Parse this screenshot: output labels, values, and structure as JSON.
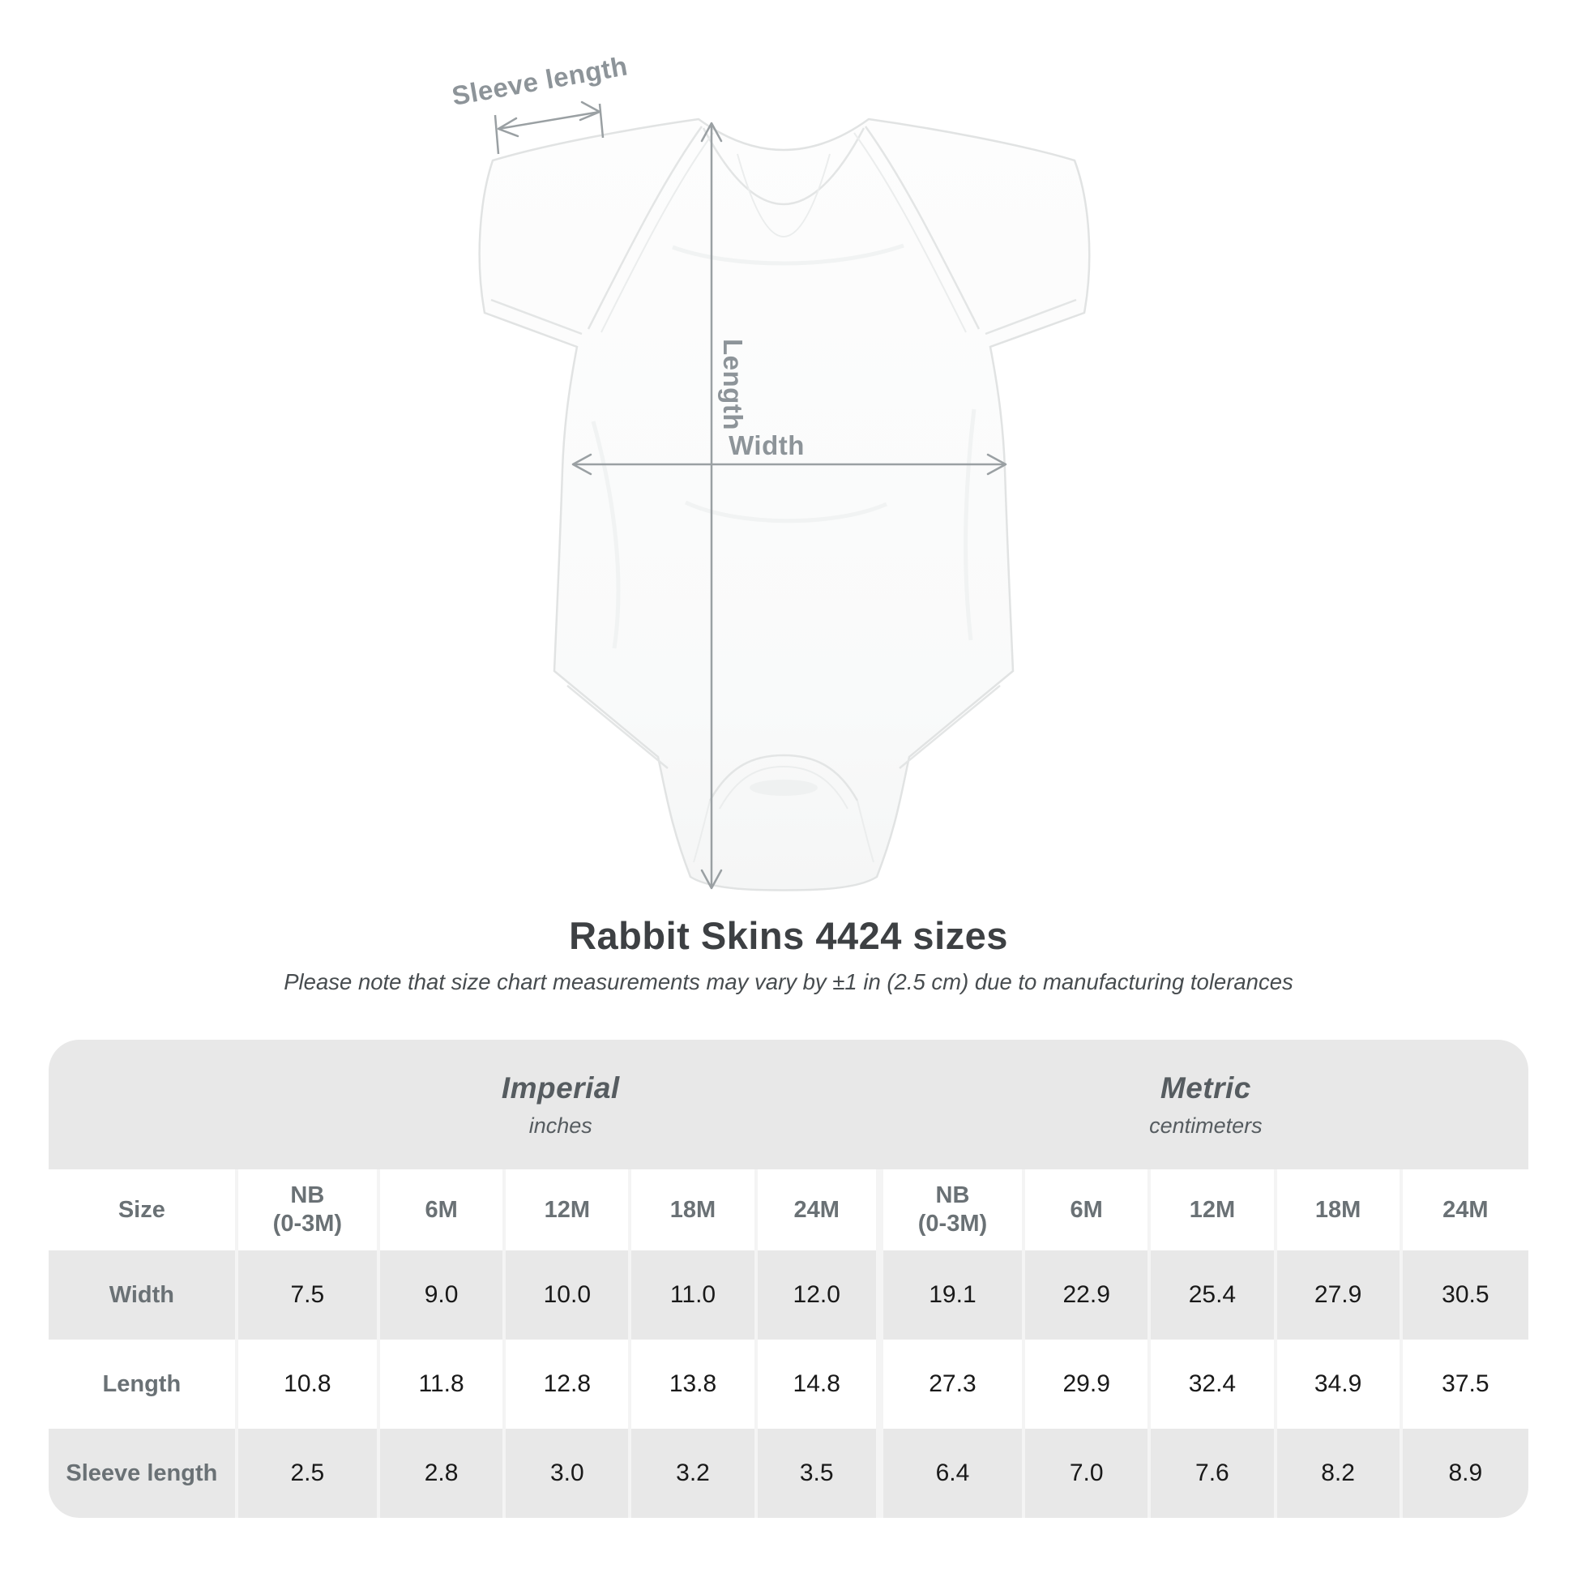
{
  "figure": {
    "sleeve_length_label": "Sleeve length",
    "length_label": "Length",
    "width_label": "Width"
  },
  "header": {
    "title": "Rabbit Skins 4424 sizes",
    "subtitle": "Please note that size chart measurements may vary by ±1 in (2.5 cm) due to manufacturing tolerances"
  },
  "table": {
    "sections": [
      {
        "label": "Imperial",
        "unit": "inches"
      },
      {
        "label": "Metric",
        "unit": "centimeters"
      }
    ],
    "size_col_header": "Size",
    "col_headers": [
      "NB\n(0-3M)",
      "6M",
      "12M",
      "18M",
      "24M",
      "NB\n(0-3M)",
      "6M",
      "12M",
      "18M",
      "24M"
    ],
    "rows": [
      {
        "label": "Width",
        "values": [
          "7.5",
          "9.0",
          "10.0",
          "11.0",
          "12.0",
          "19.1",
          "22.9",
          "25.4",
          "27.9",
          "30.5"
        ]
      },
      {
        "label": "Length",
        "values": [
          "10.8",
          "11.8",
          "12.8",
          "13.8",
          "14.8",
          "27.3",
          "29.9",
          "32.4",
          "34.9",
          "37.5"
        ]
      },
      {
        "label": "Sleeve length",
        "values": [
          "2.5",
          "2.8",
          "3.0",
          "3.2",
          "3.5",
          "6.4",
          "7.0",
          "7.6",
          "8.2",
          "8.9"
        ]
      }
    ]
  },
  "chart_data": {
    "type": "table",
    "title": "Rabbit Skins 4424 sizes",
    "note": "Please note that size chart measurements may vary by ±1 in (2.5 cm) due to manufacturing tolerances",
    "sizes": [
      "NB (0-3M)",
      "6M",
      "12M",
      "18M",
      "24M"
    ],
    "measurements": [
      {
        "name": "Width",
        "imperial_in": [
          7.5,
          9.0,
          10.0,
          11.0,
          12.0
        ],
        "metric_cm": [
          19.1,
          22.9,
          25.4,
          27.9,
          30.5
        ]
      },
      {
        "name": "Length",
        "imperial_in": [
          10.8,
          11.8,
          12.8,
          13.8,
          14.8
        ],
        "metric_cm": [
          27.3,
          29.9,
          32.4,
          34.9,
          37.5
        ]
      },
      {
        "name": "Sleeve length",
        "imperial_in": [
          2.5,
          2.8,
          3.0,
          3.2,
          3.5
        ],
        "metric_cm": [
          6.4,
          7.0,
          7.6,
          8.2,
          8.9
        ]
      }
    ],
    "legend_position": "none",
    "grid": false
  },
  "colors": {
    "row_stripe": "#e8e8e8",
    "separator": "#f4f4f4",
    "annotation_gray": "#8d9499",
    "title_gray": "#3d4043",
    "header_text_gray": "#6a7175",
    "data_text": "#191919",
    "garment_outline": "#e1e3e3"
  }
}
